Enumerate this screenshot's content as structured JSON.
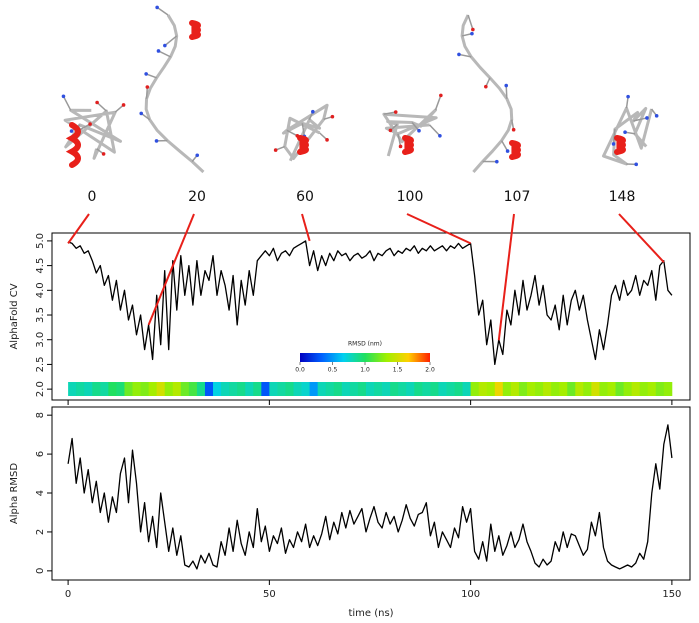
{
  "chart_data": [
    {
      "type": "line",
      "ylabel": "AlphaFold CV",
      "xlim": [
        -4,
        154.5
      ],
      "ylim": [
        1.78,
        5.16
      ],
      "xticks": [
        0,
        50,
        100,
        150
      ],
      "show_xtick_labels": false,
      "yticks": [
        {
          "value": 2,
          "label": "2.0"
        },
        {
          "value": 2.5,
          "label": "2.5"
        },
        {
          "value": 3,
          "label": "3.0"
        },
        {
          "value": 3.5,
          "label": "3.5"
        },
        {
          "value": 4,
          "label": "4.0"
        },
        {
          "value": 4.5,
          "label": "4.5"
        },
        {
          "value": 5,
          "label": "5.0"
        }
      ],
      "x": [
        0,
        1,
        2,
        3,
        4,
        5,
        6,
        7,
        8,
        9,
        10,
        11,
        12,
        13,
        14,
        15,
        16,
        17,
        18,
        19,
        20,
        21,
        22,
        23,
        24,
        25,
        26,
        27,
        28,
        29,
        30,
        31,
        32,
        33,
        34,
        35,
        36,
        37,
        38,
        39,
        40,
        41,
        42,
        43,
        44,
        45,
        46,
        47,
        48,
        49,
        50,
        51,
        52,
        53,
        54,
        55,
        56,
        57,
        58,
        59,
        60,
        61,
        62,
        63,
        64,
        65,
        66,
        67,
        68,
        69,
        70,
        71,
        72,
        73,
        74,
        75,
        76,
        77,
        78,
        79,
        80,
        81,
        82,
        83,
        84,
        85,
        86,
        87,
        88,
        89,
        90,
        91,
        92,
        93,
        94,
        95,
        96,
        97,
        98,
        99,
        100,
        101,
        102,
        103,
        104,
        105,
        106,
        107,
        108,
        109,
        110,
        111,
        112,
        113,
        114,
        115,
        116,
        117,
        118,
        119,
        120,
        121,
        122,
        123,
        124,
        125,
        126,
        127,
        128,
        129,
        130,
        131,
        132,
        133,
        134,
        135,
        136,
        137,
        138,
        139,
        140,
        141,
        142,
        143,
        144,
        145,
        146,
        147,
        148,
        149,
        150
      ],
      "series": [
        {
          "color": "#000000",
          "values": [
            4.98,
            4.95,
            4.85,
            4.9,
            4.75,
            4.8,
            4.6,
            4.35,
            4.5,
            4.1,
            4.3,
            3.8,
            4.2,
            3.6,
            4.0,
            3.4,
            3.7,
            3.1,
            3.5,
            2.8,
            3.3,
            2.6,
            3.9,
            2.9,
            4.4,
            2.8,
            4.6,
            3.6,
            4.7,
            3.9,
            4.5,
            3.7,
            4.6,
            3.9,
            4.4,
            4.2,
            4.7,
            3.9,
            4.4,
            4.1,
            3.6,
            4.3,
            3.3,
            4.2,
            3.7,
            4.4,
            3.9,
            4.6,
            4.7,
            4.8,
            4.7,
            4.85,
            4.6,
            4.75,
            4.8,
            4.7,
            4.85,
            4.9,
            4.95,
            5.0,
            4.5,
            4.8,
            4.4,
            4.7,
            4.5,
            4.75,
            4.6,
            4.8,
            4.7,
            4.75,
            4.6,
            4.7,
            4.75,
            4.65,
            4.7,
            4.8,
            4.6,
            4.75,
            4.7,
            4.8,
            4.85,
            4.7,
            4.8,
            4.75,
            4.85,
            4.8,
            4.9,
            4.75,
            4.85,
            4.8,
            4.9,
            4.8,
            4.85,
            4.9,
            4.8,
            4.9,
            4.85,
            4.95,
            4.85,
            4.9,
            4.95,
            4.3,
            3.5,
            3.8,
            2.9,
            3.4,
            2.5,
            3.0,
            2.7,
            3.6,
            3.3,
            4.0,
            3.5,
            4.2,
            3.6,
            3.9,
            4.3,
            3.7,
            4.1,
            3.5,
            3.4,
            3.7,
            3.2,
            3.9,
            3.3,
            3.8,
            4.0,
            3.6,
            3.9,
            3.4,
            3.0,
            2.6,
            3.2,
            2.8,
            3.3,
            3.9,
            4.1,
            3.8,
            4.2,
            3.9,
            4.0,
            4.3,
            3.9,
            4.2,
            4.1,
            4.4,
            3.8,
            4.5,
            4.6,
            4.0,
            3.9
          ]
        }
      ],
      "heatmap": {
        "label": "RMSD (nm)",
        "lim": [
          0,
          2
        ],
        "ticks": [
          {
            "value": 0,
            "label": "0.0"
          },
          {
            "value": 0.5,
            "label": "0.5"
          },
          {
            "value": 1,
            "label": "1.0"
          },
          {
            "value": 1.5,
            "label": "1.5"
          },
          {
            "value": 2,
            "label": "2.0"
          }
        ],
        "colormap": [
          "#0000c0",
          "#0060ff",
          "#00d0f0",
          "#20e060",
          "#a0f000",
          "#ffd000",
          "#ff2000"
        ],
        "values": [
          0.8,
          0.85,
          0.8,
          0.9,
          0.85,
          1.0,
          0.95,
          1.2,
          1.3,
          1.25,
          1.35,
          1.5,
          1.3,
          1.4,
          1.2,
          1.1,
          0.9,
          0.3,
          0.7,
          0.8,
          0.85,
          0.9,
          0.8,
          0.9,
          0.3,
          0.8,
          0.85,
          0.9,
          0.8,
          0.75,
          0.5,
          0.8,
          0.85,
          0.9,
          0.8,
          0.85,
          0.9,
          0.8,
          0.85,
          0.8,
          0.9,
          0.85,
          0.8,
          0.9,
          0.85,
          0.9,
          0.8,
          0.85,
          0.9,
          0.8,
          1.3,
          1.4,
          1.35,
          1.6,
          1.3,
          1.4,
          1.25,
          1.35,
          1.3,
          1.4,
          1.3,
          1.35,
          1.2,
          1.4,
          1.3,
          1.5,
          1.3,
          1.35,
          1.2,
          1.3,
          1.4,
          1.3,
          1.35,
          1.25,
          1.3
        ]
      },
      "snapshots": [
        {
          "time": 0,
          "cv": 4.95
        },
        {
          "time": 20,
          "cv": 3.3
        },
        {
          "time": 60,
          "cv": 5.0
        },
        {
          "time": 100,
          "cv": 4.95
        },
        {
          "time": 107,
          "cv": 2.99
        },
        {
          "time": 148,
          "cv": 4.57
        }
      ],
      "snapshot_color": "#e8201a"
    },
    {
      "type": "line",
      "ylabel": "Alpha RMSD",
      "xlabel": "time (ns)",
      "xlim": [
        -4,
        154.5
      ],
      "ylim": [
        -0.47,
        8.42
      ],
      "xticks": [
        0,
        50,
        100,
        150
      ],
      "show_xtick_labels": true,
      "yticks": [
        0,
        2,
        4,
        6,
        8
      ],
      "x": [
        0,
        1,
        2,
        3,
        4,
        5,
        6,
        7,
        8,
        9,
        10,
        11,
        12,
        13,
        14,
        15,
        16,
        17,
        18,
        19,
        20,
        21,
        22,
        23,
        24,
        25,
        26,
        27,
        28,
        29,
        30,
        31,
        32,
        33,
        34,
        35,
        36,
        37,
        38,
        39,
        40,
        41,
        42,
        43,
        44,
        45,
        46,
        47,
        48,
        49,
        50,
        51,
        52,
        53,
        54,
        55,
        56,
        57,
        58,
        59,
        60,
        61,
        62,
        63,
        64,
        65,
        66,
        67,
        68,
        69,
        70,
        71,
        72,
        73,
        74,
        75,
        76,
        77,
        78,
        79,
        80,
        81,
        82,
        83,
        84,
        85,
        86,
        87,
        88,
        89,
        90,
        91,
        92,
        93,
        94,
        95,
        96,
        97,
        98,
        99,
        100,
        101,
        102,
        103,
        104,
        105,
        106,
        107,
        108,
        109,
        110,
        111,
        112,
        113,
        114,
        115,
        116,
        117,
        118,
        119,
        120,
        121,
        122,
        123,
        124,
        125,
        126,
        127,
        128,
        129,
        130,
        131,
        132,
        133,
        134,
        135,
        136,
        137,
        138,
        139,
        140,
        141,
        142,
        143,
        144,
        145,
        146,
        147,
        148,
        149,
        150
      ],
      "series": [
        {
          "color": "#000000",
          "values": [
            5.5,
            6.8,
            4.5,
            5.8,
            4.0,
            5.2,
            3.5,
            4.6,
            3.0,
            4.0,
            2.5,
            3.8,
            3.0,
            5.0,
            5.8,
            3.5,
            6.2,
            4.5,
            2.0,
            3.5,
            1.5,
            2.8,
            1.2,
            4.0,
            2.5,
            1.0,
            2.2,
            0.8,
            1.8,
            0.3,
            0.2,
            0.5,
            0.1,
            0.8,
            0.4,
            0.9,
            0.3,
            0.2,
            1.5,
            0.8,
            2.2,
            1.0,
            2.6,
            1.4,
            0.8,
            2.0,
            1.2,
            3.2,
            1.5,
            2.3,
            1.0,
            1.8,
            1.4,
            2.2,
            0.9,
            1.6,
            1.2,
            2.0,
            1.5,
            2.4,
            1.2,
            1.8,
            1.3,
            1.9,
            2.8,
            1.6,
            2.5,
            1.9,
            3.0,
            2.2,
            3.1,
            2.4,
            2.8,
            3.2,
            2.0,
            2.7,
            3.3,
            2.5,
            2.2,
            3.0,
            2.4,
            2.8,
            2.0,
            2.6,
            3.4,
            2.7,
            2.3,
            2.9,
            3.0,
            3.5,
            1.8,
            2.5,
            1.2,
            2.0,
            1.6,
            1.2,
            2.2,
            1.7,
            3.3,
            2.5,
            3.2,
            1.0,
            0.6,
            1.5,
            0.5,
            2.4,
            1.0,
            1.8,
            0.8,
            1.3,
            2.0,
            1.2,
            1.6,
            2.4,
            1.5,
            1.0,
            0.4,
            0.2,
            0.6,
            0.3,
            0.5,
            1.5,
            1.0,
            2.0,
            1.2,
            1.9,
            1.8,
            1.3,
            0.8,
            1.1,
            2.5,
            1.8,
            3.0,
            1.2,
            0.5,
            0.3,
            0.2,
            0.1,
            0.2,
            0.3,
            0.2,
            0.4,
            0.9,
            0.6,
            1.5,
            4.0,
            5.5,
            4.2,
            6.5,
            7.5,
            5.8
          ]
        }
      ]
    }
  ]
}
